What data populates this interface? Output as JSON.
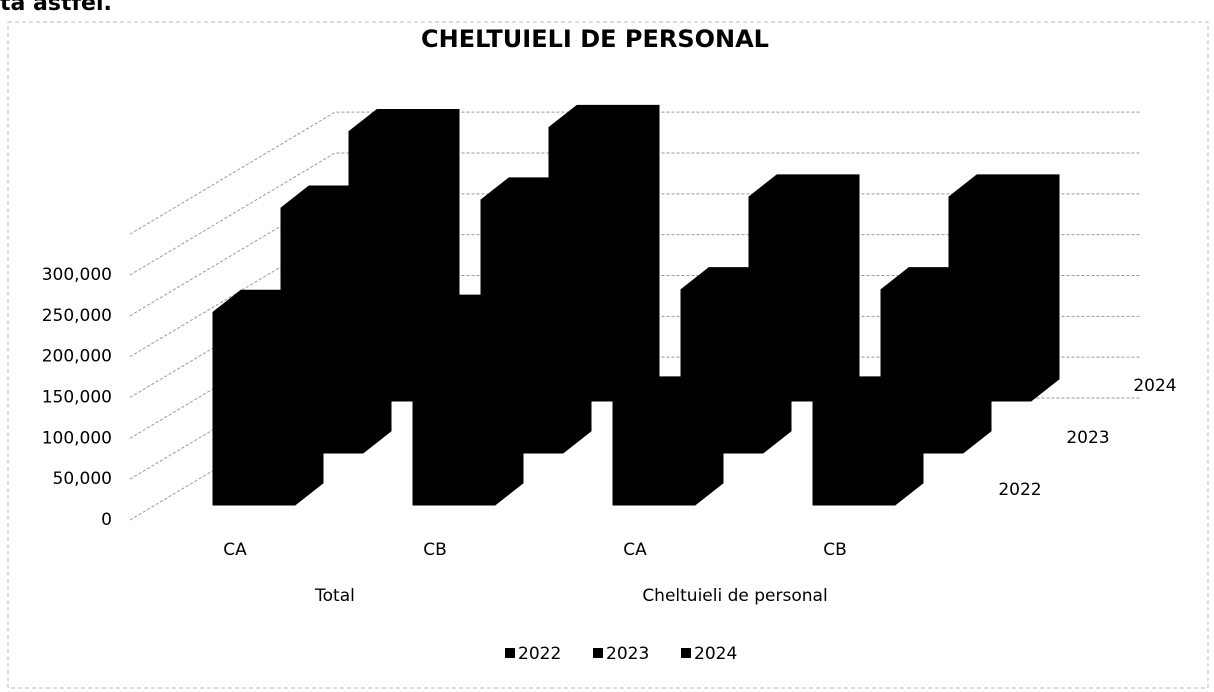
{
  "header_text": "ta astfel.",
  "chart_data": {
    "type": "bar3d",
    "title": "CHELTUIELI DE PERSONAL",
    "categories": [
      "CA",
      "CB",
      "CA",
      "CB"
    ],
    "category_groups": [
      "Total",
      "Cheltuieli de personal"
    ],
    "series": [
      {
        "name": "2022",
        "color": "#000000",
        "values": [
          236000,
          230000,
          130000,
          130000
        ]
      },
      {
        "name": "2023",
        "color": "#000000",
        "values": [
          300000,
          310000,
          200000,
          200000
        ]
      },
      {
        "name": "2024",
        "color": "#000000",
        "values": [
          330000,
          335000,
          250000,
          250000
        ]
      }
    ],
    "ylim": [
      0,
      350000
    ],
    "yticks": [
      0,
      {
        "value": 50000,
        "label": "50,000"
      },
      {
        "value": 100000,
        "label": "100,000"
      },
      {
        "value": 150000,
        "label": "150,000"
      },
      {
        "value": 200000,
        "label": "200,000"
      },
      {
        "value": 250000,
        "label": "250,000"
      },
      {
        "value": 300000,
        "label": "300,000"
      }
    ],
    "grid": true,
    "legend": "bottom"
  }
}
